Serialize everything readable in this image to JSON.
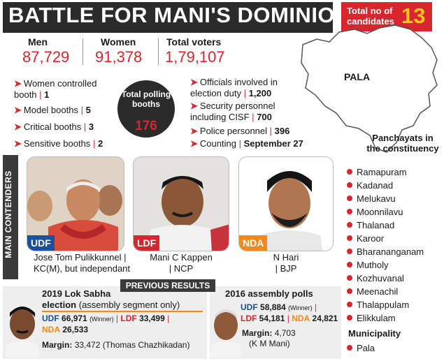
{
  "header": {
    "title": "BATTLE FOR MANI'S DOMINION",
    "candidates_label": "Total no of candidates",
    "candidates_count": "13"
  },
  "voters": {
    "men_label": "Men",
    "men_value": "87,729",
    "women_label": "Women",
    "women_value": "91,378",
    "total_label": "Total voters",
    "total_value": "1,79,107"
  },
  "booths": [
    {
      "label": "Women controlled booth",
      "value": "1"
    },
    {
      "label": "Model booths",
      "value": "5"
    },
    {
      "label": "Critical booths",
      "value": "3"
    },
    {
      "label": "Sensitive booths",
      "value": "2"
    }
  ],
  "polling": {
    "label": "Total polling booths",
    "value": "176"
  },
  "officials": [
    {
      "label1": "Officials involved in",
      "label2": "election duty",
      "value": "1,200"
    },
    {
      "label1": "Security personnel",
      "label2": "including CISF",
      "value": "700"
    },
    {
      "label1": "Police personnel",
      "label2": "",
      "value": "396"
    },
    {
      "label1": "Counting",
      "label2": "",
      "value": "September 27"
    }
  ],
  "map": {
    "label": "PALA"
  },
  "panchayats": {
    "title": "Panchayats in the constituency",
    "items": [
      "Ramapuram",
      "Kadanad",
      "Melukavu",
      "Moonnilavu",
      "Thalanad",
      "Karoor",
      "Bharananganam",
      "Mutholy",
      "Kozhuvanal",
      "Meenachil",
      "Thalappulam",
      "Elikkulam"
    ],
    "municipality_title": "Municipality",
    "municipality": "Pala"
  },
  "contenders": {
    "section_label": "MAIN CONTENDERS",
    "items": [
      {
        "party": "UDF",
        "name": "Jose Tom Pulikkunnel |",
        "affiliation": "KC(M), but independant"
      },
      {
        "party": "LDF",
        "name": "Mani C Kappen",
        "affiliation": "| NCP"
      },
      {
        "party": "NDA",
        "name": "N Hari",
        "affiliation": "| BJP"
      }
    ]
  },
  "previous": {
    "label": "PREVIOUS RESULTS",
    "lok_sabha": {
      "title_bold": "2019 Lok Sabha",
      "title_bold2": "election",
      "title_rest": "(assembly segment only)",
      "udf_label": "UDF",
      "udf_value": "66,971",
      "winner": "(Winner)",
      "ldf_label": "LDF",
      "ldf_value": "33,499",
      "nda_label": "NDA",
      "nda_value": "26,533",
      "margin_label": "Margin:",
      "margin_value": "33,472 (Thomas Chazhikadan)"
    },
    "assembly": {
      "title": "2016 assembly polls",
      "udf_label": "UDF",
      "udf_value": "58,884",
      "winner": "(Winner)",
      "ldf_label": "LDF",
      "ldf_value": "54,181",
      "nda_label": "NDA",
      "nda_value": "24,821",
      "margin_label": "Margin:",
      "margin_value": "4,703",
      "margin_name": "(K M Mani)"
    }
  },
  "colors": {
    "accent_red": "#d7262e",
    "udf_blue": "#1b4fa0",
    "nda_orange": "#f08a1c",
    "dark": "#2b2b2b",
    "candidates_yellow": "#f7c21d"
  }
}
